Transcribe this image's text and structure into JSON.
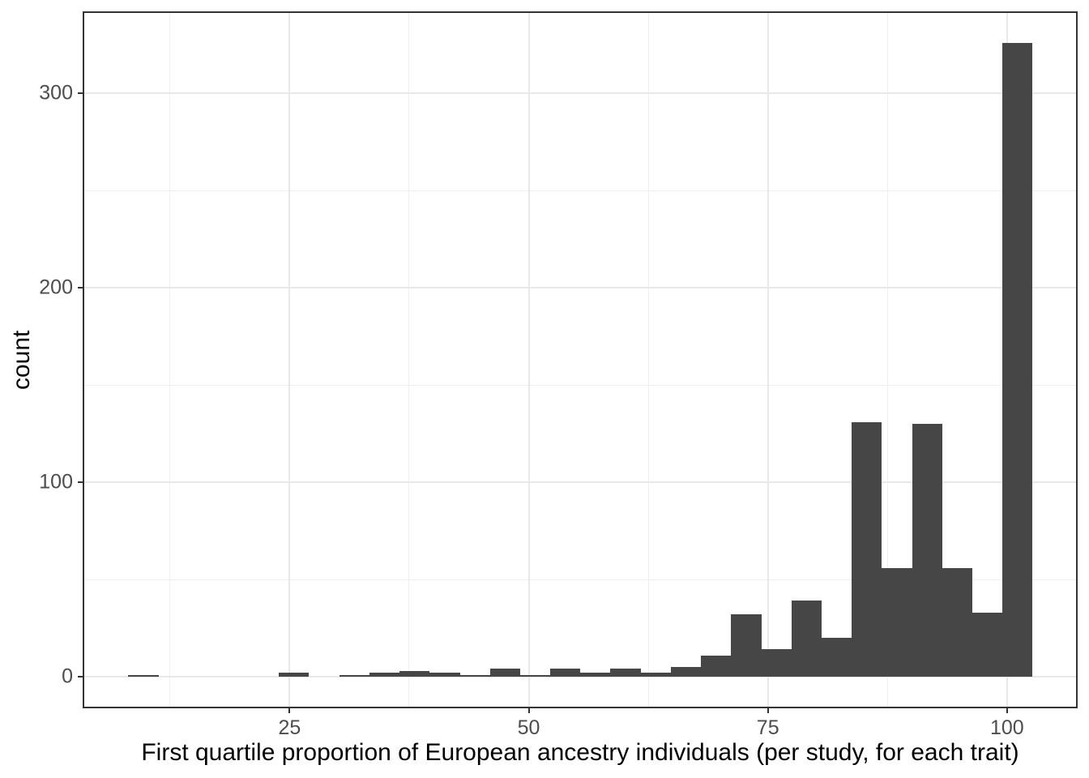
{
  "chart_data": {
    "type": "bar",
    "subtype": "histogram",
    "title": "",
    "xlabel": "First quartile proportion of European ancestry individuals (per study, for each trait)",
    "ylabel": "count",
    "xlim": [
      3.37,
      107.38
    ],
    "ylim": [
      -16.25,
      342.25
    ],
    "x_major_ticks": [
      25,
      50,
      75,
      100
    ],
    "x_minor_gridlines": [
      12.5,
      37.5,
      62.5,
      87.5
    ],
    "y_major_ticks": [
      0,
      100,
      200,
      300
    ],
    "y_minor_gridlines": [
      50,
      150,
      250
    ],
    "grid": true,
    "legend": false,
    "colors": {
      "bar_fill": "#464646",
      "panel_border": "#343434",
      "gridline_major": "#e8e8e8",
      "gridline_minor": "#efefef",
      "tick_label": "#4d4d4d",
      "axis_title": "#000000",
      "background": "#ffffff"
    },
    "bins": [
      {
        "x0": 8.14,
        "x1": 11.29,
        "count": 1
      },
      {
        "x0": 11.29,
        "x1": 14.44,
        "count": 0
      },
      {
        "x0": 14.44,
        "x1": 17.59,
        "count": 0
      },
      {
        "x0": 17.59,
        "x1": 20.74,
        "count": 0
      },
      {
        "x0": 20.74,
        "x1": 23.89,
        "count": 0
      },
      {
        "x0": 23.89,
        "x1": 27.04,
        "count": 2
      },
      {
        "x0": 27.04,
        "x1": 30.19,
        "count": 0
      },
      {
        "x0": 30.19,
        "x1": 33.35,
        "count": 1
      },
      {
        "x0": 33.35,
        "x1": 36.5,
        "count": 2
      },
      {
        "x0": 36.5,
        "x1": 39.65,
        "count": 3
      },
      {
        "x0": 39.65,
        "x1": 42.8,
        "count": 2
      },
      {
        "x0": 42.8,
        "x1": 45.95,
        "count": 1
      },
      {
        "x0": 45.95,
        "x1": 49.1,
        "count": 4
      },
      {
        "x0": 49.1,
        "x1": 52.25,
        "count": 1
      },
      {
        "x0": 52.25,
        "x1": 55.4,
        "count": 4
      },
      {
        "x0": 55.4,
        "x1": 58.55,
        "count": 2
      },
      {
        "x0": 58.55,
        "x1": 61.71,
        "count": 4
      },
      {
        "x0": 61.71,
        "x1": 64.86,
        "count": 2
      },
      {
        "x0": 64.86,
        "x1": 68.01,
        "count": 5
      },
      {
        "x0": 68.01,
        "x1": 71.16,
        "count": 11
      },
      {
        "x0": 71.16,
        "x1": 74.31,
        "count": 32
      },
      {
        "x0": 74.31,
        "x1": 77.46,
        "count": 14
      },
      {
        "x0": 77.46,
        "x1": 80.61,
        "count": 39
      },
      {
        "x0": 80.61,
        "x1": 83.76,
        "count": 20
      },
      {
        "x0": 83.76,
        "x1": 86.91,
        "count": 131
      },
      {
        "x0": 86.91,
        "x1": 90.06,
        "count": 56
      },
      {
        "x0": 90.06,
        "x1": 93.21,
        "count": 130
      },
      {
        "x0": 93.21,
        "x1": 96.37,
        "count": 56
      },
      {
        "x0": 96.37,
        "x1": 99.52,
        "count": 33
      },
      {
        "x0": 99.52,
        "x1": 102.67,
        "count": 326
      }
    ]
  }
}
